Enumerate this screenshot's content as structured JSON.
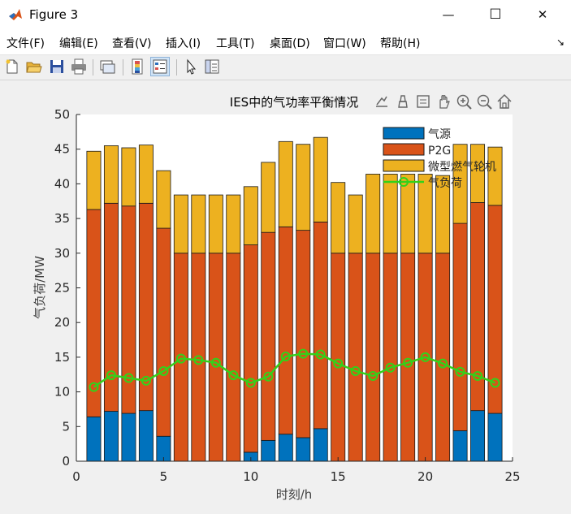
{
  "window": {
    "title": "Figure 3",
    "minimize_glyph": "—",
    "maximize_glyph": "☐",
    "close_glyph": "✕"
  },
  "menu": [
    "文件(F)",
    "编辑(E)",
    "查看(V)",
    "插入(I)",
    "工具(T)",
    "桌面(D)",
    "窗口(W)",
    "帮助(H)"
  ],
  "menu_overflow_glyph": "↘",
  "toolbar": [
    {
      "icon": "new-figure-icon"
    },
    {
      "icon": "open-file-icon"
    },
    {
      "icon": "save-icon"
    },
    {
      "icon": "print-icon"
    },
    {
      "icon": "link-plot-icon"
    },
    {
      "icon": "insert-colorbar-icon"
    },
    {
      "icon": "insert-legend-icon"
    },
    {
      "icon": "pointer-icon"
    },
    {
      "icon": "property-inspector-icon"
    }
  ],
  "axes_toolbar": [
    "export-icon",
    "brush-icon",
    "datatip-icon",
    "pan-icon",
    "zoom-in-icon",
    "zoom-out-icon",
    "home-icon"
  ],
  "colors": {
    "gas_source": "#0072BD",
    "p2g": "#D95319",
    "micro_turbine": "#EDB120",
    "gas_load": "#33D11A"
  },
  "chart_data": {
    "type": "bar",
    "stacked": true,
    "title": "IES中的气功率平衡情况",
    "xlabel": "时刻/h",
    "ylabel": "气负荷/MW",
    "xlim": [
      0,
      25
    ],
    "ylim": [
      0,
      50
    ],
    "xticks": [
      0,
      5,
      10,
      15,
      20,
      25
    ],
    "yticks": [
      0,
      5,
      10,
      15,
      20,
      25,
      30,
      35,
      40,
      45,
      50
    ],
    "grid": false,
    "legend_position": "top-right",
    "x": [
      1,
      2,
      3,
      4,
      5,
      6,
      7,
      8,
      9,
      10,
      11,
      12,
      13,
      14,
      15,
      16,
      17,
      18,
      19,
      20,
      21,
      22,
      23,
      24
    ],
    "series": [
      {
        "name": "气源",
        "kind": "bar",
        "color": "#0072BD",
        "values": [
          6.4,
          7.2,
          6.9,
          7.3,
          3.6,
          0,
          0,
          0,
          0,
          1.3,
          3.0,
          3.9,
          3.4,
          4.7,
          0,
          0,
          0,
          0,
          0,
          0,
          0,
          4.4,
          7.3,
          6.9
        ]
      },
      {
        "name": "P2G",
        "kind": "bar",
        "color": "#D95319",
        "values": [
          29.9,
          30.0,
          29.9,
          29.9,
          30.0,
          30.0,
          30.0,
          30.0,
          30.0,
          29.9,
          30.0,
          29.9,
          29.9,
          29.8,
          30.0,
          30.0,
          30.0,
          30.0,
          30.0,
          30.0,
          30.0,
          29.9,
          30.0,
          30.0
        ]
      },
      {
        "name": "微型燃气轮机",
        "kind": "bar",
        "color": "#EDB120",
        "values": [
          8.4,
          8.3,
          8.4,
          8.4,
          8.3,
          8.4,
          8.4,
          8.4,
          8.4,
          8.4,
          10.1,
          12.3,
          12.4,
          12.2,
          10.2,
          8.4,
          11.4,
          11.4,
          11.4,
          11.4,
          11.2,
          11.4,
          8.4,
          8.4
        ]
      },
      {
        "name": "气负荷",
        "kind": "line",
        "marker": "circle",
        "color": "#33D11A",
        "values": [
          10.7,
          12.4,
          12.0,
          11.6,
          13.0,
          14.8,
          14.6,
          14.2,
          12.4,
          11.3,
          12.2,
          15.1,
          15.5,
          15.4,
          14.1,
          13.0,
          12.3,
          13.5,
          14.2,
          15.0,
          14.1,
          12.9,
          12.3,
          11.3
        ]
      }
    ]
  }
}
